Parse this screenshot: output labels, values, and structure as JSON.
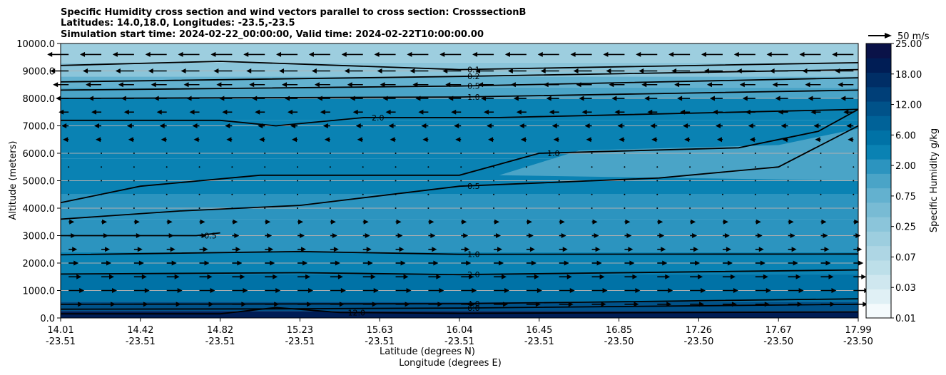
{
  "chart_data": {
    "type": "filled-contour cross section with wind vectors",
    "title_lines": [
      "Specific Humidity cross section and wind vectors parallel to cross section: CrosssectionB",
      "Latitudes: 14.0,18.0, Longitudes: -23.5,-23.5",
      "Simulation start time: 2024-02-22_00:00:00, Valid time: 2024-02-22T10:00:00.00"
    ],
    "xlabel_lat": "Latitude (degrees N)",
    "xlabel_lon": "Longitude (degrees E)",
    "ylabel": "Altitude (meters)",
    "x_range": [
      14.01,
      17.99
    ],
    "y_range": [
      0,
      10000
    ],
    "x_ticks": [
      {
        "lat": "14.01",
        "lon": "-23.51",
        "pos": 0
      },
      {
        "lat": "14.42",
        "lon": "-23.51",
        "pos": 0.1
      },
      {
        "lat": "14.82",
        "lon": "-23.51",
        "pos": 0.2
      },
      {
        "lat": "15.23",
        "lon": "-23.51",
        "pos": 0.3
      },
      {
        "lat": "15.63",
        "lon": "-23.51",
        "pos": 0.4
      },
      {
        "lat": "16.04",
        "lon": "-23.51",
        "pos": 0.5
      },
      {
        "lat": "16.45",
        "lon": "-23.51",
        "pos": 0.6
      },
      {
        "lat": "16.85",
        "lon": "-23.50",
        "pos": 0.7
      },
      {
        "lat": "17.26",
        "lon": "-23.50",
        "pos": 0.8
      },
      {
        "lat": "17.67",
        "lon": "-23.50",
        "pos": 0.9
      },
      {
        "lat": "17.99",
        "lon": "-23.50",
        "pos": 1.0
      }
    ],
    "y_ticks": [
      0,
      1000,
      2000,
      3000,
      4000,
      5000,
      6000,
      7000,
      8000,
      9000,
      10000
    ],
    "y_tick_labels": [
      "0.0",
      "1000.0",
      "2000.0",
      "3000.0",
      "4000.0",
      "5000.0",
      "6000.0",
      "7000.0",
      "8000.0",
      "9000.0",
      "10000.0"
    ],
    "colorbar": {
      "label": "Specific Humidity g/kg",
      "ticks": [
        "0.01",
        "0.03",
        "0.07",
        "0.25",
        "0.75",
        "2.00",
        "6.00",
        "12.00",
        "18.00",
        "25.00"
      ],
      "levels": [
        "0.01",
        "0.02",
        "0.03",
        "0.05",
        "0.07",
        "0.1",
        "0.25",
        "0.5",
        "0.75",
        "1.0",
        "2.0",
        "4.0",
        "6.0",
        "9.0",
        "12.0",
        "15.0",
        "18.0",
        "21.0",
        "25.0"
      ],
      "colors": [
        "#f4fafc",
        "#e0f0f5",
        "#cfe7ef",
        "#bddfe9",
        "#aed6e4",
        "#9dcedf",
        "#8bc5da",
        "#78bbd4",
        "#63b1cf",
        "#4aa4c7",
        "#2c94bf",
        "#0a82b3",
        "#0072a6",
        "#006298",
        "#005289",
        "#003f78",
        "#002e66",
        "#001d55",
        "#0a1248"
      ]
    },
    "wind_key": {
      "label": "50 m/s",
      "speed": 50
    },
    "contour_lines": [
      {
        "label": "12.0",
        "alt_profile": [
          {
            "x": 0,
            "y": 150
          },
          {
            "x": 0.2,
            "y": 150
          },
          {
            "x": 0.27,
            "y": 380
          },
          {
            "x": 0.35,
            "y": 200
          },
          {
            "x": 0.5,
            "y": 170
          },
          {
            "x": 1,
            "y": 220
          }
        ]
      },
      {
        "label": "6.0",
        "alt_profile": [
          {
            "x": 0,
            "y": 320
          },
          {
            "x": 0.25,
            "y": 330
          },
          {
            "x": 0.5,
            "y": 360
          },
          {
            "x": 1,
            "y": 500
          }
        ]
      },
      {
        "label": "4.0",
        "alt_profile": [
          {
            "x": 0,
            "y": 500
          },
          {
            "x": 0.5,
            "y": 520
          },
          {
            "x": 1,
            "y": 700
          }
        ]
      },
      {
        "label": "2.0",
        "alt_profile": [
          {
            "x": 0,
            "y": 1600
          },
          {
            "x": 0.3,
            "y": 1650
          },
          {
            "x": 0.5,
            "y": 1580
          },
          {
            "x": 1,
            "y": 1750
          }
        ]
      },
      {
        "label": "1.0",
        "alt_profile": [
          {
            "x": 0,
            "y": 2300
          },
          {
            "x": 0.3,
            "y": 2420
          },
          {
            "x": 0.5,
            "y": 2320
          },
          {
            "x": 1,
            "y": 2330
          }
        ]
      },
      {
        "label": "0.5",
        "alt_profile": [
          {
            "x": 0,
            "y": 3000
          },
          {
            "x": 0.17,
            "y": 3000
          },
          {
            "x": 0.2,
            "y": 3100
          }
        ]
      },
      {
        "label": "0.5",
        "alt_profile": [
          {
            "x": 0,
            "y": 3600
          },
          {
            "x": 0.15,
            "y": 3900
          },
          {
            "x": 0.3,
            "y": 4100
          },
          {
            "x": 0.5,
            "y": 4800
          },
          {
            "x": 0.75,
            "y": 5100
          },
          {
            "x": 0.9,
            "y": 5500
          },
          {
            "x": 1,
            "y": 7000
          }
        ]
      },
      {
        "label": "1.0",
        "alt_profile": [
          {
            "x": 0,
            "y": 4200
          },
          {
            "x": 0.1,
            "y": 4800
          },
          {
            "x": 0.25,
            "y": 5200
          },
          {
            "x": 0.5,
            "y": 5200
          },
          {
            "x": 0.6,
            "y": 6000
          },
          {
            "x": 0.85,
            "y": 6200
          },
          {
            "x": 0.95,
            "y": 6800
          },
          {
            "x": 1,
            "y": 7600
          }
        ]
      },
      {
        "label": "2.0",
        "alt_profile": [
          {
            "x": 0,
            "y": 7200
          },
          {
            "x": 0.2,
            "y": 7200
          },
          {
            "x": 0.27,
            "y": 7000
          },
          {
            "x": 0.38,
            "y": 7300
          },
          {
            "x": 0.55,
            "y": 7300
          },
          {
            "x": 1,
            "y": 7600
          }
        ]
      },
      {
        "label": "1.0",
        "alt_profile": [
          {
            "x": 0,
            "y": 8000
          },
          {
            "x": 0.5,
            "y": 8050
          },
          {
            "x": 1,
            "y": 8300
          }
        ]
      },
      {
        "label": "0.5",
        "alt_profile": [
          {
            "x": 0,
            "y": 8300
          },
          {
            "x": 0.5,
            "y": 8450
          },
          {
            "x": 1,
            "y": 8750
          }
        ]
      },
      {
        "label": "0.2",
        "alt_profile": [
          {
            "x": 0,
            "y": 8600
          },
          {
            "x": 0.5,
            "y": 8800
          },
          {
            "x": 1,
            "y": 9050
          }
        ]
      },
      {
        "label": "0.1",
        "alt_profile": [
          {
            "x": 0,
            "y": 9200
          },
          {
            "x": 0.2,
            "y": 9350
          },
          {
            "x": 0.5,
            "y": 9050
          },
          {
            "x": 1,
            "y": 9300
          }
        ]
      }
    ],
    "wind_rows": [
      {
        "alt": 9600,
        "u": -0.6
      },
      {
        "alt": 9000,
        "u": -0.5
      },
      {
        "alt": 8500,
        "u": -0.4
      },
      {
        "alt": 8000,
        "u": -0.3
      },
      {
        "alt": 7500,
        "u": -0.2
      },
      {
        "alt": 7000,
        "u": -0.1
      },
      {
        "alt": 6500,
        "u": -0.05
      },
      {
        "alt": 6000,
        "u": -0.02
      },
      {
        "alt": 5500,
        "u": -0.01
      },
      {
        "alt": 5000,
        "u": -0.01
      },
      {
        "alt": 4500,
        "u": -0.01
      },
      {
        "alt": 4000,
        "u": -0.01
      },
      {
        "alt": 3500,
        "u": 0.05
      },
      {
        "alt": 3000,
        "u": 0.1
      },
      {
        "alt": 2500,
        "u": 0.15
      },
      {
        "alt": 2000,
        "u": 0.2
      },
      {
        "alt": 1500,
        "u": 0.3
      },
      {
        "alt": 1000,
        "u": 0.4
      },
      {
        "alt": 500,
        "u": 0.35
      }
    ]
  }
}
